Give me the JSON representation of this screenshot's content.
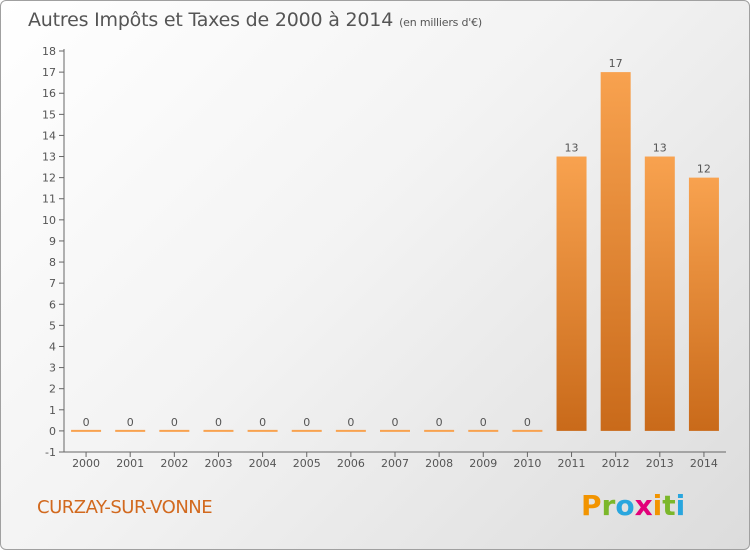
{
  "header": {
    "title": "Autres Impôts et Taxes de 2000 à 2014",
    "unit": "(en milliers d'€)"
  },
  "footer": {
    "commune": "CURZAY-SUR-VONNE",
    "logo_letters": [
      "P",
      "r",
      "o",
      "x",
      "i",
      "t",
      "i"
    ],
    "logo_colors": [
      "#f29400",
      "#7bb72a",
      "#29a6de",
      "#e2007a",
      "#f29400",
      "#7bb72a",
      "#29a6de"
    ]
  },
  "colors": {
    "bar_light": "#f8a24f",
    "bar_dark": "#c96a1a",
    "axis": "#666666",
    "grid": "#cccccc",
    "commune": "#d2691e"
  },
  "chart_data": {
    "type": "bar",
    "categories": [
      "2000",
      "2001",
      "2002",
      "2003",
      "2004",
      "2005",
      "2006",
      "2007",
      "2008",
      "2009",
      "2010",
      "2011",
      "2012",
      "2013",
      "2014"
    ],
    "values": [
      0,
      0,
      0,
      0,
      0,
      0,
      0,
      0,
      0,
      0,
      0,
      13,
      17,
      13,
      12
    ],
    "title": "Autres Impôts et Taxes de 2000 à 2014",
    "xlabel": "",
    "ylabel": "",
    "ylim": [
      -1,
      18
    ],
    "yticks": [
      -1,
      0,
      1,
      2,
      3,
      4,
      5,
      6,
      7,
      8,
      9,
      10,
      11,
      12,
      13,
      14,
      15,
      16,
      17,
      18
    ],
    "grid": false,
    "data_labels": true
  }
}
